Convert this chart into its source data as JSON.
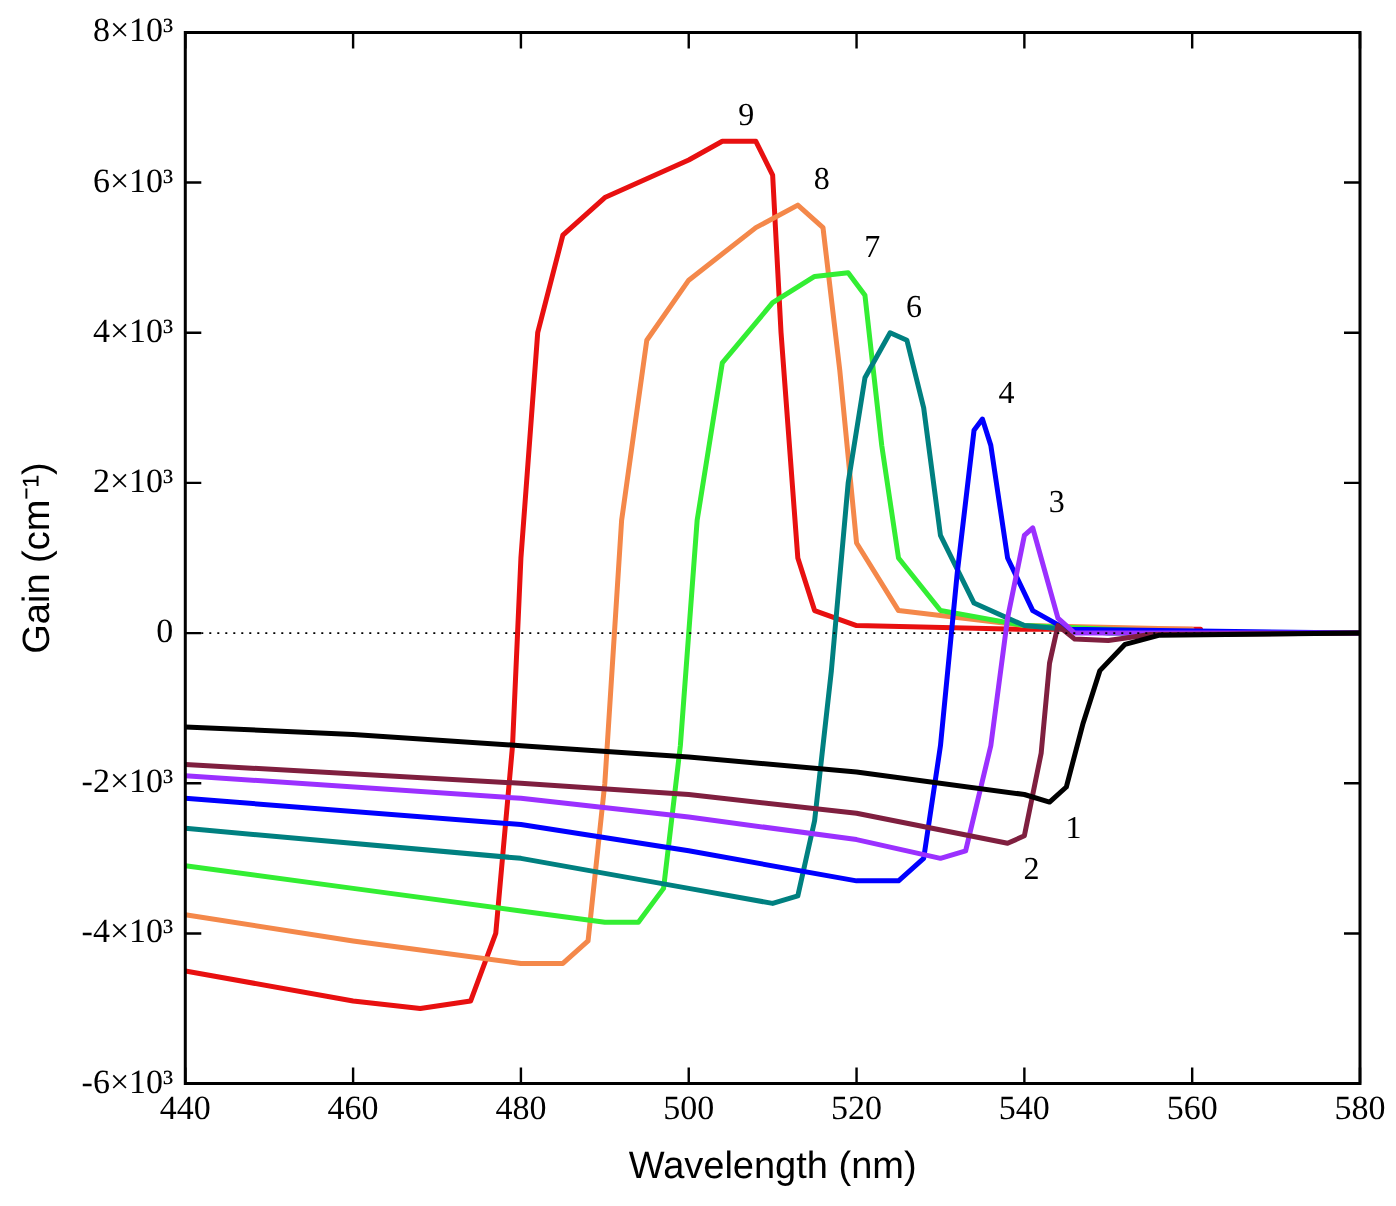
{
  "chart_data": {
    "type": "line",
    "xlabel": "Wavelength (nm)",
    "ylabel": "Gain (cm⁻¹)",
    "xlim": [
      440,
      580
    ],
    "xticks": [
      440,
      460,
      480,
      500,
      520,
      540,
      560,
      580
    ],
    "ylim": [
      -6000,
      8000
    ],
    "yticks": [
      {
        "value": -6000,
        "label": "-6×10³"
      },
      {
        "value": -4000,
        "label": "-4×10³"
      },
      {
        "value": -2000,
        "label": "-2×10³"
      },
      0,
      {
        "value": 2000,
        "label": "2×10³"
      },
      {
        "value": 4000,
        "label": "4×10³"
      },
      {
        "value": 6000,
        "label": "6×10³"
      },
      {
        "value": 8000,
        "label": "8×10³"
      }
    ],
    "grid": false,
    "legend": false,
    "marker": "none",
    "line_style": "solid",
    "ref_lines": [
      {
        "axis": "y",
        "value": 0,
        "color": "#000000",
        "line_style": "dotted"
      }
    ],
    "series": [
      {
        "name": "1",
        "color": "#000000",
        "x": [
          440,
          460,
          480,
          500,
          520,
          540,
          543,
          545,
          547,
          549,
          552,
          556,
          580
        ],
        "values": [
          -1250,
          -1350,
          -1500,
          -1650,
          -1850,
          -2150,
          -2250,
          -2050,
          -1200,
          -500,
          -150,
          -30,
          0
        ]
      },
      {
        "name": "2",
        "color": "#7f1f3f",
        "x": [
          440,
          480,
          500,
          520,
          538,
          540,
          542,
          543,
          544,
          546,
          550,
          555,
          580
        ],
        "values": [
          -1750,
          -2000,
          -2150,
          -2400,
          -2800,
          -2700,
          -1600,
          -400,
          100,
          -80,
          -100,
          -20,
          0
        ]
      },
      {
        "name": "3",
        "color": "#9b30ff",
        "x": [
          440,
          480,
          500,
          520,
          530,
          533,
          536,
          538,
          540,
          541,
          542,
          544,
          546,
          580
        ],
        "values": [
          -1900,
          -2200,
          -2450,
          -2750,
          -3000,
          -2900,
          -1500,
          200,
          1300,
          1400,
          1000,
          200,
          0,
          0
        ]
      },
      {
        "name": "4",
        "color": "#0000ff",
        "x": [
          440,
          480,
          500,
          520,
          525,
          528,
          530,
          532,
          534,
          535,
          536,
          538,
          541,
          545,
          580
        ],
        "values": [
          -2200,
          -2550,
          -2900,
          -3300,
          -3300,
          -3000,
          -1500,
          800,
          2700,
          2850,
          2500,
          1000,
          300,
          50,
          0
        ]
      },
      {
        "name": "6",
        "color": "#008080",
        "x": [
          440,
          480,
          500,
          510,
          513,
          515,
          517,
          519,
          521,
          524,
          526,
          528,
          530,
          534,
          540,
          550,
          580
        ],
        "values": [
          -2600,
          -3000,
          -3400,
          -3600,
          -3500,
          -2500,
          -500,
          2000,
          3400,
          4000,
          3900,
          3000,
          1300,
          400,
          100,
          0,
          0
        ]
      },
      {
        "name": "7",
        "color": "#33ee33",
        "x": [
          440,
          460,
          480,
          490,
          494,
          497,
          499,
          501,
          504,
          510,
          515,
          519,
          521,
          523,
          525,
          530,
          540,
          560
        ],
        "values": [
          -3100,
          -3400,
          -3700,
          -3850,
          -3850,
          -3400,
          -1500,
          1500,
          3600,
          4400,
          4750,
          4800,
          4500,
          2500,
          1000,
          300,
          100,
          0
        ]
      },
      {
        "name": "8",
        "color": "#f4884a",
        "x": [
          440,
          460,
          480,
          485,
          488,
          490,
          492,
          495,
          500,
          508,
          513,
          516,
          518,
          520,
          525,
          540,
          560
        ],
        "values": [
          -3750,
          -4100,
          -4400,
          -4400,
          -4100,
          -2000,
          1500,
          3900,
          4700,
          5400,
          5700,
          5400,
          3500,
          1200,
          300,
          100,
          50
        ]
      },
      {
        "name": "9",
        "color": "#e81010",
        "x": [
          440,
          460,
          468,
          474,
          477,
          479,
          480,
          482,
          485,
          490,
          500,
          504,
          508,
          510,
          511,
          513,
          515,
          520,
          540,
          561
        ],
        "values": [
          -4500,
          -4900,
          -5000,
          -4900,
          -4000,
          -1500,
          1000,
          4000,
          5300,
          5800,
          6300,
          6550,
          6550,
          6100,
          4000,
          1000,
          300,
          100,
          50,
          50
        ]
      }
    ]
  }
}
